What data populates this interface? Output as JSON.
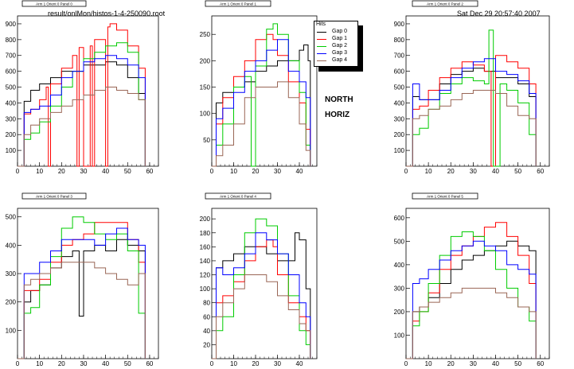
{
  "header": {
    "file": "result/onlMon/histos-1-4-250090.root",
    "date": "Sat Dec 29 20:57:40 2007"
  },
  "labels": {
    "north": "NORTH",
    "horiz": "HORIZ"
  },
  "legend": {
    "title": "Hits",
    "items": [
      {
        "label": "Gap 0",
        "color": "#000000"
      },
      {
        "label": "Gap 1",
        "color": "#ff0000"
      },
      {
        "label": "Gap 2",
        "color": "#00cc00"
      },
      {
        "label": "Gap 3",
        "color": "#0000ff"
      },
      {
        "label": "Gap 4",
        "color": "#996655"
      }
    ]
  },
  "chart_data": [
    {
      "type": "line",
      "title": "Arm 1 Orient 0 Panel 0",
      "xlim": [
        0,
        64
      ],
      "ylim": [
        0,
        950
      ],
      "xticks": [
        0,
        10,
        20,
        30,
        40,
        50,
        60
      ],
      "yticks": [
        100,
        200,
        300,
        400,
        500,
        600,
        700,
        800,
        900
      ],
      "series": [
        {
          "name": "Gap 0",
          "x": [
            0,
            3,
            6,
            10,
            15,
            20,
            25,
            30,
            35,
            40,
            45,
            50,
            55,
            58
          ],
          "y": [
            0,
            410,
            480,
            520,
            560,
            600,
            600,
            640,
            640,
            660,
            640,
            560,
            460,
            0
          ]
        },
        {
          "name": "Gap 1",
          "x": [
            0,
            3,
            6,
            10,
            13,
            14,
            15,
            20,
            25,
            27,
            28,
            30,
            33,
            34,
            35,
            40,
            41,
            42,
            45,
            50,
            55,
            58
          ],
          "y": [
            0,
            330,
            360,
            420,
            500,
            0,
            520,
            620,
            700,
            0,
            750,
            0,
            760,
            0,
            800,
            0,
            880,
            900,
            860,
            760,
            620,
            0
          ]
        },
        {
          "name": "Gap 2",
          "x": [
            0,
            3,
            6,
            10,
            15,
            20,
            25,
            30,
            35,
            40,
            45,
            50,
            55,
            58
          ],
          "y": [
            0,
            170,
            210,
            280,
            380,
            500,
            600,
            680,
            720,
            760,
            780,
            720,
            420,
            0
          ]
        },
        {
          "name": "Gap 3",
          "x": [
            0,
            3,
            6,
            10,
            15,
            20,
            25,
            30,
            35,
            40,
            45,
            50,
            55,
            58
          ],
          "y": [
            0,
            340,
            360,
            380,
            450,
            560,
            600,
            660,
            680,
            700,
            680,
            640,
            560,
            0
          ]
        },
        {
          "name": "Gap 4",
          "x": [
            0,
            3,
            6,
            10,
            15,
            20,
            25,
            30,
            35,
            40,
            45,
            50,
            55,
            58
          ],
          "y": [
            0,
            200,
            260,
            300,
            340,
            380,
            420,
            450,
            480,
            500,
            480,
            460,
            420,
            0
          ]
        }
      ]
    },
    {
      "type": "line",
      "title": "Arm 1 Orient 0 Panel 1",
      "xlim": [
        0,
        48
      ],
      "ylim": [
        0,
        285
      ],
      "xticks": [
        0,
        10,
        20,
        30,
        40
      ],
      "yticks": [
        50,
        100,
        150,
        200,
        250
      ],
      "series": [
        {
          "name": "Gap 0",
          "x": [
            0,
            2,
            5,
            10,
            15,
            20,
            25,
            30,
            35,
            40,
            42,
            44,
            45
          ],
          "y": [
            0,
            120,
            140,
            150,
            160,
            180,
            190,
            200,
            200,
            220,
            230,
            200,
            0
          ]
        },
        {
          "name": "Gap 1",
          "x": [
            0,
            2,
            5,
            10,
            15,
            20,
            25,
            28,
            30,
            35,
            40,
            43,
            45
          ],
          "y": [
            0,
            80,
            130,
            170,
            200,
            240,
            250,
            240,
            210,
            160,
            120,
            70,
            0
          ]
        },
        {
          "name": "Gap 2",
          "x": [
            0,
            2,
            5,
            10,
            15,
            18,
            20,
            25,
            28,
            30,
            35,
            40,
            43,
            45
          ],
          "y": [
            0,
            40,
            80,
            150,
            170,
            0,
            190,
            260,
            270,
            250,
            200,
            140,
            40,
            0
          ]
        },
        {
          "name": "Gap 3",
          "x": [
            0,
            2,
            5,
            10,
            15,
            20,
            25,
            30,
            35,
            40,
            43,
            45
          ],
          "y": [
            0,
            90,
            110,
            140,
            180,
            200,
            220,
            240,
            180,
            160,
            130,
            0
          ]
        },
        {
          "name": "Gap 4",
          "x": [
            0,
            2,
            5,
            10,
            15,
            20,
            25,
            30,
            35,
            40,
            43,
            45
          ],
          "y": [
            0,
            20,
            40,
            80,
            130,
            150,
            150,
            160,
            130,
            80,
            30,
            0
          ]
        }
      ]
    },
    {
      "type": "line",
      "title": "Arm 1 Orient 0 Panel 2",
      "xlim": [
        0,
        64
      ],
      "ylim": [
        0,
        950
      ],
      "xticks": [
        0,
        10,
        20,
        30,
        40,
        50,
        60
      ],
      "yticks": [
        100,
        200,
        300,
        400,
        500,
        600,
        700,
        800,
        900
      ],
      "series": [
        {
          "name": "Gap 0",
          "x": [
            0,
            3,
            6,
            10,
            15,
            20,
            25,
            30,
            35,
            40,
            45,
            50,
            55,
            58
          ],
          "y": [
            0,
            440,
            420,
            420,
            520,
            580,
            600,
            620,
            600,
            560,
            560,
            520,
            440,
            0
          ]
        },
        {
          "name": "Gap 1",
          "x": [
            0,
            3,
            6,
            10,
            15,
            20,
            25,
            30,
            35,
            38,
            40,
            45,
            50,
            55,
            58
          ],
          "y": [
            0,
            360,
            380,
            480,
            560,
            620,
            660,
            640,
            600,
            0,
            700,
            660,
            620,
            520,
            0
          ]
        },
        {
          "name": "Gap 2",
          "x": [
            0,
            3,
            6,
            10,
            15,
            20,
            25,
            30,
            35,
            37,
            39,
            42,
            45,
            50,
            55,
            58
          ],
          "y": [
            0,
            200,
            240,
            360,
            460,
            520,
            560,
            540,
            520,
            860,
            0,
            520,
            480,
            400,
            200,
            0
          ]
        },
        {
          "name": "Gap 3",
          "x": [
            0,
            3,
            6,
            10,
            15,
            20,
            25,
            30,
            35,
            40,
            45,
            50,
            55,
            58
          ],
          "y": [
            0,
            520,
            420,
            420,
            480,
            560,
            620,
            660,
            680,
            600,
            580,
            540,
            460,
            0
          ]
        },
        {
          "name": "Gap 4",
          "x": [
            0,
            3,
            6,
            10,
            15,
            20,
            25,
            30,
            35,
            40,
            45,
            50,
            55,
            58
          ],
          "y": [
            0,
            300,
            320,
            360,
            380,
            420,
            460,
            480,
            480,
            460,
            380,
            320,
            300,
            0
          ]
        }
      ]
    },
    {
      "type": "line",
      "title": "Arm 1 Orient 0 Panel 3",
      "xlim": [
        0,
        64
      ],
      "ylim": [
        0,
        530
      ],
      "xticks": [
        0,
        10,
        20,
        30,
        40,
        50,
        60
      ],
      "yticks": [
        100,
        200,
        300,
        400,
        500
      ],
      "series": [
        {
          "name": "Gap 0",
          "x": [
            0,
            3,
            6,
            10,
            15,
            20,
            25,
            28,
            30,
            35,
            40,
            45,
            50,
            55,
            58
          ],
          "y": [
            0,
            200,
            240,
            260,
            320,
            360,
            380,
            150,
            380,
            400,
            380,
            420,
            400,
            380,
            0
          ]
        },
        {
          "name": "Gap 1",
          "x": [
            0,
            3,
            6,
            10,
            15,
            20,
            25,
            30,
            35,
            40,
            45,
            50,
            55,
            58
          ],
          "y": [
            0,
            240,
            240,
            280,
            340,
            400,
            420,
            440,
            480,
            480,
            480,
            420,
            340,
            0
          ]
        },
        {
          "name": "Gap 2",
          "x": [
            0,
            3,
            6,
            10,
            15,
            20,
            25,
            30,
            35,
            40,
            45,
            50,
            55,
            58
          ],
          "y": [
            0,
            160,
            180,
            260,
            360,
            460,
            500,
            480,
            440,
            420,
            440,
            380,
            160,
            0
          ]
        },
        {
          "name": "Gap 3",
          "x": [
            0,
            3,
            6,
            10,
            15,
            20,
            25,
            30,
            35,
            40,
            45,
            50,
            55,
            58
          ],
          "y": [
            0,
            300,
            300,
            340,
            380,
            420,
            420,
            420,
            400,
            440,
            460,
            420,
            400,
            0
          ]
        },
        {
          "name": "Gap 4",
          "x": [
            0,
            3,
            6,
            10,
            15,
            20,
            25,
            30,
            35,
            40,
            45,
            50,
            55,
            58
          ],
          "y": [
            0,
            260,
            280,
            300,
            320,
            340,
            340,
            340,
            320,
            300,
            280,
            260,
            300,
            0
          ]
        }
      ]
    },
    {
      "type": "line",
      "title": "Arm 1 Orient 0 Panel 4",
      "xlim": [
        0,
        48
      ],
      "ylim": [
        0,
        215
      ],
      "xticks": [
        0,
        10,
        20,
        30,
        40
      ],
      "yticks": [
        20,
        40,
        60,
        80,
        100,
        120,
        140,
        160,
        180,
        200
      ],
      "series": [
        {
          "name": "Gap 0",
          "x": [
            0,
            2,
            5,
            10,
            15,
            20,
            25,
            30,
            35,
            38,
            40,
            43,
            45
          ],
          "y": [
            0,
            130,
            140,
            150,
            160,
            160,
            150,
            140,
            140,
            180,
            170,
            100,
            0
          ]
        },
        {
          "name": "Gap 1",
          "x": [
            0,
            2,
            5,
            10,
            15,
            20,
            25,
            28,
            30,
            35,
            40,
            43,
            45
          ],
          "y": [
            0,
            80,
            90,
            110,
            140,
            160,
            170,
            160,
            120,
            80,
            60,
            40,
            0
          ]
        },
        {
          "name": "Gap 2",
          "x": [
            0,
            2,
            5,
            10,
            15,
            20,
            23,
            25,
            30,
            35,
            40,
            43,
            45
          ],
          "y": [
            0,
            40,
            60,
            120,
            180,
            200,
            200,
            190,
            150,
            90,
            40,
            20,
            0
          ]
        },
        {
          "name": "Gap 3",
          "x": [
            0,
            2,
            5,
            10,
            15,
            20,
            25,
            30,
            35,
            40,
            43,
            45
          ],
          "y": [
            0,
            130,
            120,
            130,
            150,
            180,
            170,
            150,
            120,
            80,
            60,
            0
          ]
        },
        {
          "name": "Gap 4",
          "x": [
            0,
            2,
            5,
            10,
            15,
            20,
            25,
            30,
            35,
            40,
            43,
            45
          ],
          "y": [
            0,
            60,
            80,
            100,
            120,
            120,
            110,
            90,
            70,
            50,
            40,
            0
          ]
        }
      ]
    },
    {
      "type": "line",
      "title": "Arm 1 Orient 0 Panel 5",
      "xlim": [
        0,
        64
      ],
      "ylim": [
        0,
        640
      ],
      "xticks": [
        0,
        10,
        20,
        30,
        40,
        50,
        60
      ],
      "yticks": [
        100,
        200,
        300,
        400,
        500,
        600
      ],
      "series": [
        {
          "name": "Gap 0",
          "x": [
            0,
            3,
            6,
            10,
            15,
            20,
            25,
            30,
            35,
            40,
            45,
            50,
            55,
            58
          ],
          "y": [
            0,
            200,
            220,
            260,
            320,
            380,
            420,
            440,
            460,
            480,
            500,
            480,
            460,
            0
          ]
        },
        {
          "name": "Gap 1",
          "x": [
            0,
            3,
            6,
            10,
            15,
            20,
            25,
            30,
            35,
            40,
            45,
            50,
            55,
            58
          ],
          "y": [
            0,
            160,
            200,
            280,
            380,
            440,
            480,
            520,
            560,
            580,
            520,
            440,
            320,
            0
          ]
        },
        {
          "name": "Gap 2",
          "x": [
            0,
            3,
            6,
            10,
            15,
            20,
            25,
            30,
            35,
            40,
            45,
            50,
            55,
            58
          ],
          "y": [
            0,
            140,
            200,
            320,
            440,
            520,
            540,
            520,
            460,
            380,
            300,
            220,
            160,
            0
          ]
        },
        {
          "name": "Gap 3",
          "x": [
            0,
            3,
            6,
            10,
            15,
            20,
            25,
            30,
            35,
            40,
            45,
            50,
            55,
            58
          ],
          "y": [
            0,
            320,
            340,
            380,
            420,
            460,
            480,
            500,
            480,
            460,
            400,
            380,
            360,
            0
          ]
        },
        {
          "name": "Gap 4",
          "x": [
            0,
            3,
            6,
            10,
            15,
            20,
            25,
            30,
            35,
            40,
            45,
            50,
            55,
            58
          ],
          "y": [
            0,
            200,
            220,
            240,
            260,
            280,
            300,
            300,
            300,
            280,
            260,
            220,
            200,
            0
          ]
        }
      ]
    }
  ]
}
